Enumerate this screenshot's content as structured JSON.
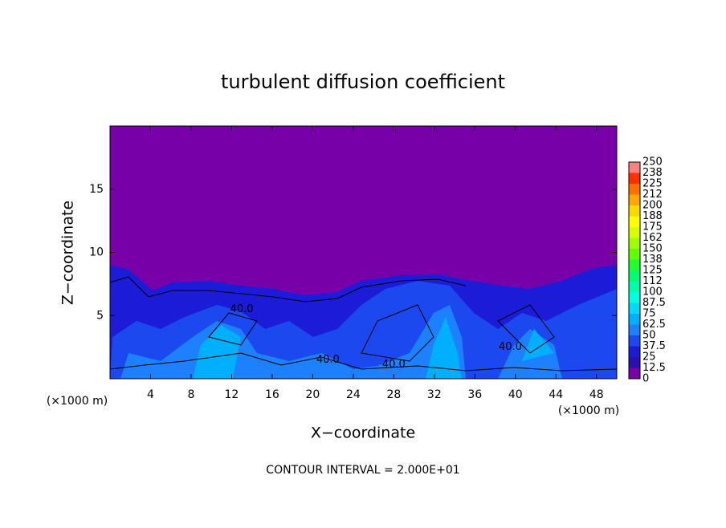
{
  "chart_data": {
    "type": "contour",
    "title": "turbulent diffusion coefficient",
    "xlabel": "X−coordinate",
    "ylabel": "Z−coordinate",
    "x_unit_label": "(×1000 m)",
    "footer": "CONTOUR INTERVAL = 2.000E+01",
    "xlim": [
      0,
      50
    ],
    "xticks": [
      4,
      8,
      12,
      16,
      20,
      24,
      28,
      32,
      36,
      40,
      44,
      48
    ],
    "ylim": [
      0,
      20
    ],
    "yticks": [
      5,
      10,
      15
    ],
    "colorbar": {
      "levels": [
        0,
        12.5,
        25,
        37.5,
        50,
        62.5,
        75,
        87.5,
        100,
        112,
        125,
        138,
        150,
        162,
        175,
        188,
        200,
        212,
        225,
        238,
        250
      ],
      "colors": [
        "#7800a8",
        "#2a10b0",
        "#1c1cd8",
        "#1c48f0",
        "#1c80ff",
        "#00b0ff",
        "#00d8ff",
        "#00ffe0",
        "#00ffa8",
        "#00ff70",
        "#20ff30",
        "#60ff00",
        "#a0ff00",
        "#d8ff00",
        "#ffff00",
        "#ffd800",
        "#ffa800",
        "#ff7000",
        "#ff3000",
        "#ff8080"
      ]
    },
    "contour_labels": {
      "x": [
        13,
        21.5,
        28,
        39.5
      ],
      "z": [
        5.5,
        1.5,
        1.1,
        2.5
      ],
      "values": [
        40,
        40,
        40,
        40
      ],
      "value_labels": [
        "40.0",
        "40.0",
        "40.0",
        "40.0"
      ]
    }
  }
}
